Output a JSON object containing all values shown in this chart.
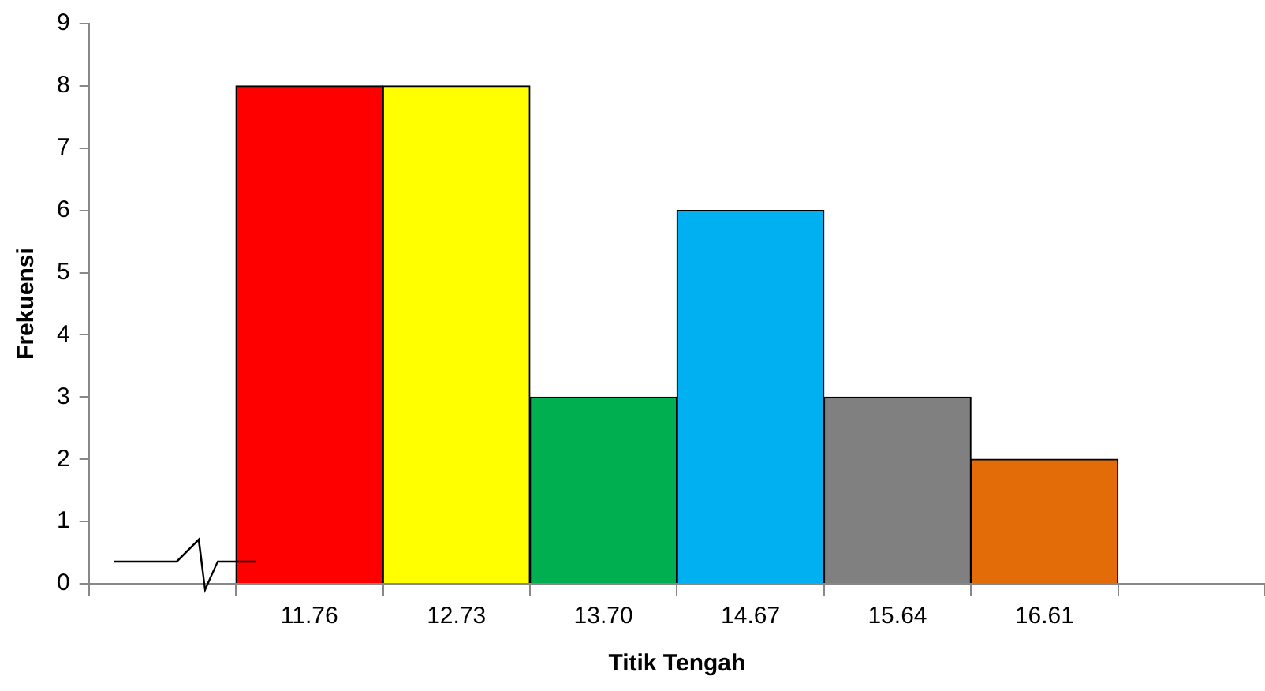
{
  "chart_data": {
    "type": "bar",
    "xlabel": "Titik Tengah",
    "ylabel": "Frekuensi",
    "categories": [
      null,
      "11.76",
      "12.73",
      "13.70",
      "14.67",
      "15.64",
      "16.61",
      null
    ],
    "values": [
      null,
      8,
      8,
      3,
      6,
      3,
      2,
      null
    ],
    "colors": [
      "#000000",
      "#ff0000",
      "#ffff00",
      "#00b050",
      "#00b0f0",
      "#808080",
      "#e36c09",
      "#000000"
    ],
    "ylim": [
      0,
      9
    ],
    "yticks": [
      0,
      1,
      2,
      3,
      4,
      5,
      6,
      7,
      8,
      9
    ],
    "grid": false,
    "legend": false
  }
}
